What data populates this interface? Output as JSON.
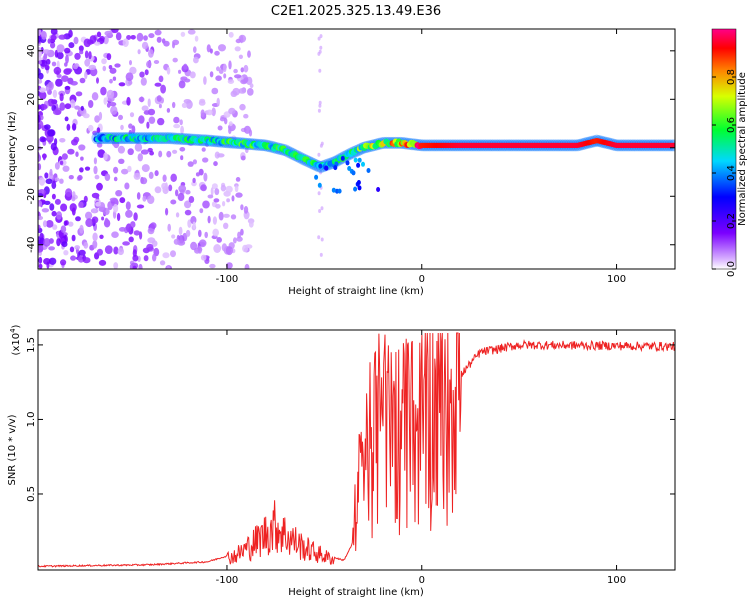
{
  "title": "C2E1.2025.325.13.49.E36",
  "chart_data": [
    {
      "type": "heatmap",
      "name": "spectrogram",
      "xlabel": "Height of straight line (km)",
      "ylabel": "Frequency (Hz)",
      "xlim": [
        -197,
        130
      ],
      "ylim": [
        -50,
        49
      ],
      "xticks": [
        -100,
        0,
        100
      ],
      "yticks": [
        -40,
        -20,
        0,
        20,
        40
      ],
      "colorbar": {
        "label": "Normalized spectral amplitude",
        "range": [
          0,
          1
        ],
        "ticks": [
          "0.0",
          "0.2",
          "0.4",
          "0.6",
          "0.8"
        ],
        "colors": [
          "#ffffff",
          "#7b00ff",
          "#0000ff",
          "#00e0ff",
          "#00ff20",
          "#d8ff00",
          "#ff8000",
          "#ff0000",
          "#ff0080"
        ]
      },
      "signal_track": [
        {
          "x": -167,
          "f": 4,
          "a": 0.45
        },
        {
          "x": -150,
          "f": 4,
          "a": 0.5
        },
        {
          "x": -130,
          "f": 4,
          "a": 0.5
        },
        {
          "x": -110,
          "f": 3,
          "a": 0.5
        },
        {
          "x": -95,
          "f": 2,
          "a": 0.55
        },
        {
          "x": -80,
          "f": 1,
          "a": 0.55
        },
        {
          "x": -70,
          "f": -1,
          "a": 0.55
        },
        {
          "x": -60,
          "f": -5,
          "a": 0.55
        },
        {
          "x": -52,
          "f": -8,
          "a": 0.5
        },
        {
          "x": -45,
          "f": -6,
          "a": 0.5
        },
        {
          "x": -38,
          "f": -3,
          "a": 0.55
        },
        {
          "x": -30,
          "f": 0,
          "a": 0.6
        },
        {
          "x": -20,
          "f": 2,
          "a": 0.7
        },
        {
          "x": -10,
          "f": 2,
          "a": 0.8
        },
        {
          "x": 0,
          "f": 1,
          "a": 0.9
        },
        {
          "x": 20,
          "f": 1,
          "a": 0.95
        },
        {
          "x": 50,
          "f": 1,
          "a": 0.95
        },
        {
          "x": 80,
          "f": 1,
          "a": 0.95
        },
        {
          "x": 90,
          "f": 3,
          "a": 0.9
        },
        {
          "x": 100,
          "f": 1,
          "a": 0.95
        },
        {
          "x": 130,
          "f": 1,
          "a": 0.95
        }
      ]
    },
    {
      "type": "line",
      "name": "snr",
      "xlabel": "Height of straight line (km)",
      "ylabel": "SNR (10 * v/v)",
      "yscale_label": "(x10",
      "yscale_exp": "4",
      "xlim": [
        -197,
        130
      ],
      "ylim": [
        -0.01,
        1.6
      ],
      "xticks": [
        -100,
        0,
        100
      ],
      "yticks": [
        "0.5",
        "1.0",
        "1.5"
      ],
      "color": "#ee2222",
      "envelope": [
        {
          "x": -197,
          "y": 0.01
        },
        {
          "x": -140,
          "y": 0.02
        },
        {
          "x": -110,
          "y": 0.04
        },
        {
          "x": -95,
          "y": 0.1
        },
        {
          "x": -85,
          "y": 0.2
        },
        {
          "x": -75,
          "y": 0.32
        },
        {
          "x": -70,
          "y": 0.25
        },
        {
          "x": -60,
          "y": 0.15
        },
        {
          "x": -48,
          "y": 0.08
        },
        {
          "x": -40,
          "y": 0.05
        },
        {
          "x": -36,
          "y": 0.15
        },
        {
          "x": -30,
          "y": 0.7
        },
        {
          "x": -20,
          "y": 0.9
        },
        {
          "x": -10,
          "y": 0.85
        },
        {
          "x": 0,
          "y": 0.9
        },
        {
          "x": 10,
          "y": 1.05
        },
        {
          "x": 20,
          "y": 1.3
        },
        {
          "x": 30,
          "y": 1.45
        },
        {
          "x": 50,
          "y": 1.5
        },
        {
          "x": 130,
          "y": 1.49
        }
      ]
    }
  ]
}
